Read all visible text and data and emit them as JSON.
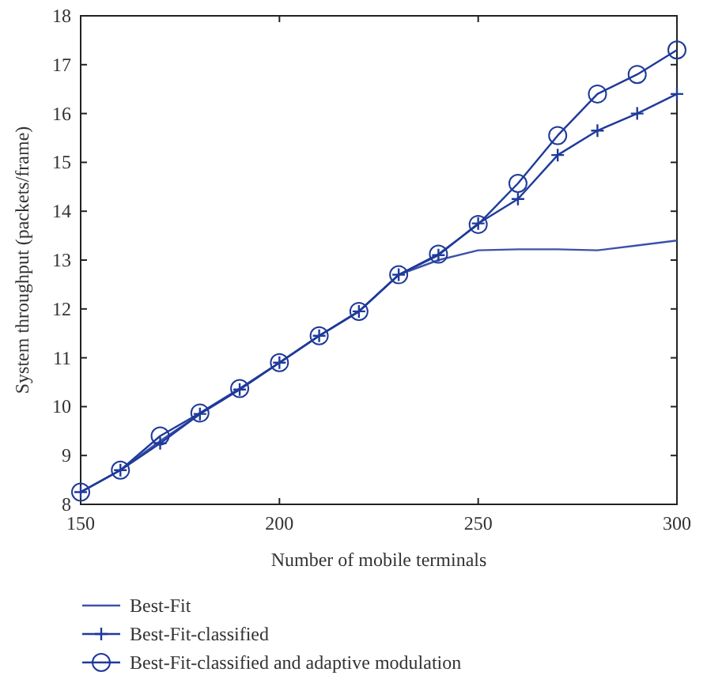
{
  "chart_data": {
    "type": "line",
    "xlabel": "Number of mobile terminals",
    "ylabel": "System throughput (packets/frame)",
    "x": [
      150,
      160,
      170,
      180,
      190,
      200,
      210,
      220,
      230,
      240,
      250,
      260,
      270,
      280,
      290,
      300
    ],
    "xlim": [
      150,
      300
    ],
    "xticks": [
      150,
      200,
      250,
      300
    ],
    "ylim": [
      8,
      18
    ],
    "yticks": [
      8,
      9,
      10,
      11,
      12,
      13,
      14,
      15,
      16,
      17,
      18
    ],
    "grid": false,
    "legend": "bottom",
    "line_style": "solid",
    "series": [
      {
        "name": "Best-Fit",
        "color": "#3d52a8",
        "marker": "none",
        "values": [
          8.25,
          8.7,
          9.3,
          9.85,
          10.35,
          10.9,
          11.45,
          11.95,
          12.7,
          13.0,
          13.2,
          13.22,
          13.22,
          13.2,
          13.3,
          13.4
        ]
      },
      {
        "name": "Best-Fit-classified",
        "color": "#1f3a9a",
        "marker": "cross",
        "values": [
          8.25,
          8.7,
          9.25,
          9.85,
          10.35,
          10.9,
          11.45,
          11.95,
          12.7,
          13.1,
          13.75,
          14.25,
          15.15,
          15.65,
          16.0,
          16.4
        ]
      },
      {
        "name": "Best-Fit-classified and adaptive modulation",
        "color": "#1f3a9a",
        "marker": "circle",
        "values": [
          8.25,
          8.7,
          9.4,
          9.87,
          10.37,
          10.9,
          11.45,
          11.95,
          12.7,
          13.12,
          13.73,
          14.57,
          15.55,
          16.4,
          16.8,
          17.3
        ]
      }
    ]
  }
}
